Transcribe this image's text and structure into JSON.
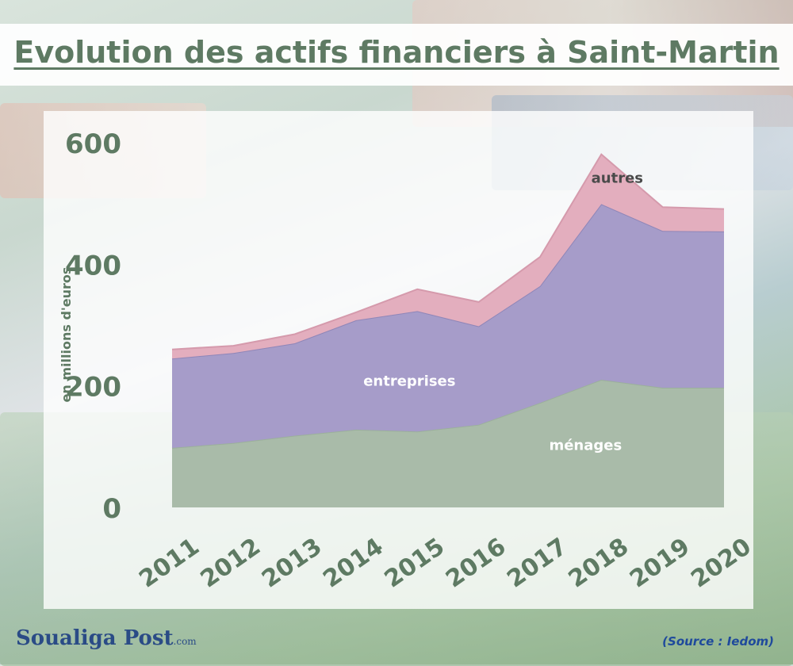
{
  "page": {
    "title": "Evolution des actifs financiers à Saint-Martin",
    "source": "(Source : Iedom)",
    "logo": "Soualiga Post",
    "logo_suffix": ".com"
  },
  "colors": {
    "menages": "#a9bba9",
    "entreprises": "#a69cc9",
    "autres": "#e3aebe",
    "text": "#5e7a63"
  },
  "chart_data": {
    "type": "area",
    "stacked": true,
    "x": [
      "2011",
      "2012",
      "2013",
      "2014",
      "2015",
      "2016",
      "2017",
      "2018",
      "2019",
      "2020"
    ],
    "ylabel": "en millions d'euros",
    "ylim": [
      0,
      600
    ],
    "yticks": [
      "0",
      "200",
      "400",
      "600"
    ],
    "grid": false,
    "series": [
      {
        "name": "ménages",
        "values": [
          98,
          106,
          118,
          128,
          125,
          136,
          172,
          210,
          197,
          197
        ]
      },
      {
        "name": "entreprises",
        "values": [
          147,
          148,
          152,
          180,
          198,
          162,
          192,
          289,
          258,
          257
        ]
      },
      {
        "name": "autres",
        "values": [
          15,
          12,
          15,
          13,
          36,
          40,
          48,
          82,
          39,
          37
        ]
      }
    ]
  }
}
